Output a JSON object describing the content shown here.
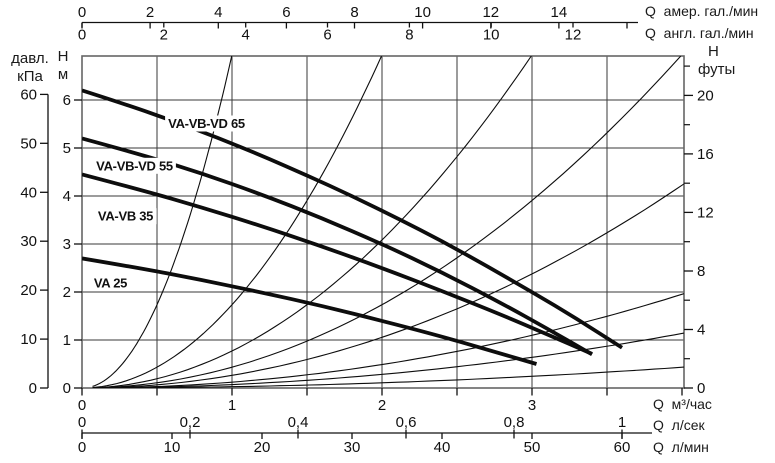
{
  "chart_data": {
    "type": "line",
    "title": "",
    "grid": {
      "x_step_m3h": 0.5,
      "y_step_m": 1,
      "grid_on": true
    },
    "x_axis_m3h": {
      "label": "Q  м³/час",
      "range": [
        0,
        4.02
      ],
      "tick_step": 0.5,
      "major_tick_labels": [
        0,
        1,
        2,
        3
      ]
    },
    "x_axis_ls": {
      "label": "Q  л/сек",
      "m3h_per_unit": 3.6,
      "ticks": [
        {
          "v": 0,
          "t": "0"
        },
        {
          "v": 0.2,
          "t": "0,2"
        },
        {
          "v": 0.4,
          "t": "0,4"
        },
        {
          "v": 0.6,
          "t": "0,6"
        },
        {
          "v": 0.8,
          "t": "0,8"
        },
        {
          "v": 1,
          "t": "1"
        }
      ]
    },
    "x_axis_lmin": {
      "label": "Q  л/мин",
      "m3h_per_unit": 0.06,
      "ticks": [
        0,
        10,
        20,
        30,
        40,
        50,
        60
      ]
    },
    "x_axis_usgpm": {
      "label": "Q  амер. гал./мин",
      "m3h_per_unit": 0.2271,
      "labeled_ticks": [
        0,
        2,
        4,
        6,
        8,
        10,
        12,
        14
      ],
      "unlabeled_ticks": [
        16
      ]
    },
    "x_axis_ukgpm": {
      "label": "Q  англ. гал./мин",
      "m3h_per_unit": 0.2728,
      "labeled_ticks": [
        0,
        2,
        4,
        6,
        8,
        10,
        12
      ]
    },
    "y_axis_m": {
      "label_top": "H",
      "label_unit": "м",
      "range": [
        0,
        6.92
      ],
      "ticks": [
        0,
        1,
        2,
        3,
        4,
        5,
        6
      ]
    },
    "y_axis_kpa": {
      "label_top": "давл.",
      "label_unit": "кПа",
      "m_per_unit": 0.10194,
      "ticks": [
        0,
        10,
        20,
        30,
        40,
        50,
        60
      ]
    },
    "y_axis_ft": {
      "label_top": "H",
      "label_unit": "футы",
      "m_per_unit": 0.3048,
      "labeled_ticks": [
        0,
        4,
        8,
        12,
        16,
        20
      ],
      "minor_ticks": [
        2,
        6,
        10,
        14,
        18,
        22
      ]
    },
    "pump_curves": [
      {
        "name": "VA-VB-VD 65",
        "label_q": 0.83,
        "label_h": 5.51,
        "points": [
          [
            0,
            6.2
          ],
          [
            0.3,
            5.9
          ],
          [
            0.6,
            5.57
          ],
          [
            0.9,
            5.22
          ],
          [
            1.2,
            4.84
          ],
          [
            1.5,
            4.43
          ],
          [
            1.8,
            4.0
          ],
          [
            2.1,
            3.54
          ],
          [
            2.4,
            3.06
          ],
          [
            2.7,
            2.54
          ],
          [
            3.0,
            2.0
          ],
          [
            3.3,
            1.44
          ],
          [
            3.6,
            0.84
          ]
        ]
      },
      {
        "name": "VA-VB-VD 55",
        "label_q": 0.35,
        "label_h": 4.63,
        "points": [
          [
            0,
            5.2
          ],
          [
            0.4,
            4.86
          ],
          [
            0.8,
            4.47
          ],
          [
            1.2,
            4.03
          ],
          [
            1.6,
            3.54
          ],
          [
            2.0,
            3.0
          ],
          [
            2.4,
            2.41
          ],
          [
            2.8,
            1.76
          ],
          [
            3.1,
            1.24
          ],
          [
            3.4,
            0.7
          ]
        ]
      },
      {
        "name": "VA-VB 35",
        "label_q": 0.29,
        "label_h": 3.58,
        "points": [
          [
            0,
            4.45
          ],
          [
            0.4,
            4.12
          ],
          [
            0.8,
            3.76
          ],
          [
            1.2,
            3.37
          ],
          [
            1.6,
            2.95
          ],
          [
            2.0,
            2.5
          ],
          [
            2.4,
            2.02
          ],
          [
            2.8,
            1.52
          ],
          [
            3.1,
            1.12
          ],
          [
            3.4,
            0.71
          ]
        ]
      },
      {
        "name": "VA 25",
        "label_q": 0.19,
        "label_h": 2.19,
        "points": [
          [
            0,
            2.7
          ],
          [
            0.4,
            2.49
          ],
          [
            0.8,
            2.25
          ],
          [
            1.2,
            1.99
          ],
          [
            1.6,
            1.71
          ],
          [
            2.0,
            1.4
          ],
          [
            2.4,
            1.07
          ],
          [
            2.7,
            0.8
          ],
          [
            3.03,
            0.5
          ]
        ]
      }
    ],
    "system_curves": [
      {
        "k": 6.94
      },
      {
        "k": 1.735
      },
      {
        "k": 0.771
      },
      {
        "k": 0.434
      },
      {
        "k": 0.264
      },
      {
        "k": 0.122
      },
      {
        "k": 0.071
      },
      {
        "k": 0.027
      }
    ],
    "colors": {
      "curve": "#0d0d0d",
      "grid": "#3a3a3a",
      "frame": "#666666",
      "text": "#111111"
    }
  }
}
